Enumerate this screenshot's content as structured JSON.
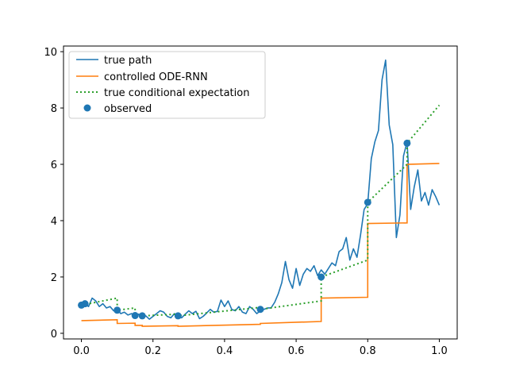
{
  "chart_data": {
    "type": "line",
    "title": "",
    "xlabel": "",
    "ylabel": "",
    "xlim": [
      -0.05,
      1.05
    ],
    "ylim": [
      -0.2,
      10.2
    ],
    "xticks": [
      0.0,
      0.2,
      0.4,
      0.6,
      0.8,
      1.0
    ],
    "xtick_labels": [
      "0.0",
      "0.2",
      "0.4",
      "0.6",
      "0.8",
      "1.0"
    ],
    "yticks": [
      0,
      2,
      4,
      6,
      8,
      10
    ],
    "ytick_labels": [
      "0",
      "2",
      "4",
      "6",
      "8",
      "10"
    ],
    "grid": false,
    "legend_position": "upper-left",
    "legend": [
      "true path",
      "controlled ODE-RNN",
      "true conditional expectation",
      "observed"
    ],
    "colors": {
      "true_path": "#1f77b4",
      "ode_rnn": "#ff7f0e",
      "expectation": "#2ca02c",
      "observed": "#1f77b4"
    },
    "series": [
      {
        "name": "true path",
        "style": "solid",
        "x": [
          0.0,
          0.01,
          0.02,
          0.03,
          0.04,
          0.05,
          0.06,
          0.07,
          0.08,
          0.09,
          0.1,
          0.11,
          0.12,
          0.13,
          0.14,
          0.15,
          0.16,
          0.17,
          0.18,
          0.19,
          0.2,
          0.21,
          0.22,
          0.23,
          0.24,
          0.25,
          0.26,
          0.27,
          0.28,
          0.29,
          0.3,
          0.31,
          0.32,
          0.33,
          0.34,
          0.35,
          0.36,
          0.37,
          0.38,
          0.39,
          0.4,
          0.41,
          0.42,
          0.43,
          0.44,
          0.45,
          0.46,
          0.47,
          0.48,
          0.49,
          0.5,
          0.51,
          0.52,
          0.53,
          0.54,
          0.55,
          0.56,
          0.57,
          0.58,
          0.59,
          0.6,
          0.61,
          0.62,
          0.63,
          0.64,
          0.65,
          0.66,
          0.67,
          0.68,
          0.69,
          0.7,
          0.71,
          0.72,
          0.73,
          0.74,
          0.75,
          0.76,
          0.77,
          0.78,
          0.79,
          0.8,
          0.81,
          0.82,
          0.83,
          0.84,
          0.85,
          0.86,
          0.87,
          0.88,
          0.89,
          0.9,
          0.91,
          0.92,
          0.93,
          0.94,
          0.95,
          0.96,
          0.97,
          0.98,
          0.99,
          1.0
        ],
        "y": [
          1.0,
          1.05,
          0.95,
          1.25,
          1.15,
          0.95,
          1.05,
          0.9,
          0.95,
          0.8,
          0.85,
          0.7,
          0.75,
          0.65,
          0.7,
          0.62,
          0.68,
          0.58,
          0.62,
          0.5,
          0.6,
          0.7,
          0.8,
          0.75,
          0.6,
          0.55,
          0.7,
          0.58,
          0.55,
          0.68,
          0.8,
          0.7,
          0.78,
          0.52,
          0.6,
          0.72,
          0.85,
          0.75,
          0.78,
          1.18,
          0.95,
          1.15,
          0.85,
          0.8,
          0.95,
          0.75,
          0.7,
          0.95,
          0.85,
          0.7,
          0.8,
          0.85,
          0.9,
          0.9,
          1.1,
          1.4,
          1.8,
          2.55,
          1.9,
          1.6,
          2.3,
          1.7,
          2.1,
          2.3,
          2.2,
          2.4,
          2.05,
          2.25,
          2.1,
          2.3,
          2.5,
          2.4,
          2.9,
          3.0,
          3.4,
          2.6,
          3.0,
          2.7,
          3.5,
          4.4,
          4.6,
          6.2,
          6.8,
          7.2,
          9.0,
          9.7,
          7.4,
          6.7,
          3.4,
          4.2,
          6.3,
          6.8,
          4.4,
          5.2,
          5.8,
          4.7,
          5.0,
          4.55,
          5.1,
          4.85,
          4.55
        ]
      },
      {
        "name": "controlled ODE-RNN",
        "style": "step",
        "segments": [
          {
            "x": [
              0.0,
              0.1
            ],
            "y": [
              0.45,
              0.48
            ]
          },
          {
            "x": [
              0.1,
              0.15
            ],
            "y": [
              0.35,
              0.36
            ]
          },
          {
            "x": [
              0.15,
              0.17
            ],
            "y": [
              0.28,
              0.28
            ]
          },
          {
            "x": [
              0.17,
              0.27
            ],
            "y": [
              0.25,
              0.27
            ]
          },
          {
            "x": [
              0.27,
              0.5
            ],
            "y": [
              0.25,
              0.32
            ]
          },
          {
            "x": [
              0.5,
              0.67
            ],
            "y": [
              0.35,
              0.42
            ]
          },
          {
            "x": [
              0.67,
              0.8
            ],
            "y": [
              1.25,
              1.28
            ]
          },
          {
            "x": [
              0.8,
              0.91
            ],
            "y": [
              3.9,
              3.92
            ]
          },
          {
            "x": [
              0.91,
              1.0
            ],
            "y": [
              6.0,
              6.03
            ]
          }
        ]
      },
      {
        "name": "true conditional expectation",
        "style": "dotted",
        "segments": [
          {
            "x": [
              0.0,
              0.1
            ],
            "y": [
              1.0,
              1.25
            ]
          },
          {
            "x": [
              0.1,
              0.15
            ],
            "y": [
              0.82,
              0.9
            ]
          },
          {
            "x": [
              0.15,
              0.17
            ],
            "y": [
              0.63,
              0.65
            ]
          },
          {
            "x": [
              0.17,
              0.27
            ],
            "y": [
              0.62,
              0.68
            ]
          },
          {
            "x": [
              0.27,
              0.5
            ],
            "y": [
              0.62,
              0.92
            ]
          },
          {
            "x": [
              0.5,
              0.67
            ],
            "y": [
              0.85,
              1.15
            ]
          },
          {
            "x": [
              0.67,
              0.8
            ],
            "y": [
              2.0,
              2.6
            ]
          },
          {
            "x": [
              0.8,
              0.91
            ],
            "y": [
              4.65,
              6.0
            ]
          },
          {
            "x": [
              0.91,
              1.0
            ],
            "y": [
              6.75,
              8.1
            ]
          }
        ]
      }
    ],
    "observed": {
      "name": "observed",
      "x": [
        0.0,
        0.01,
        0.1,
        0.15,
        0.17,
        0.27,
        0.5,
        0.67,
        0.8,
        0.91
      ],
      "y": [
        1.0,
        1.05,
        0.82,
        0.63,
        0.62,
        0.62,
        0.85,
        2.0,
        4.65,
        6.75
      ]
    }
  }
}
